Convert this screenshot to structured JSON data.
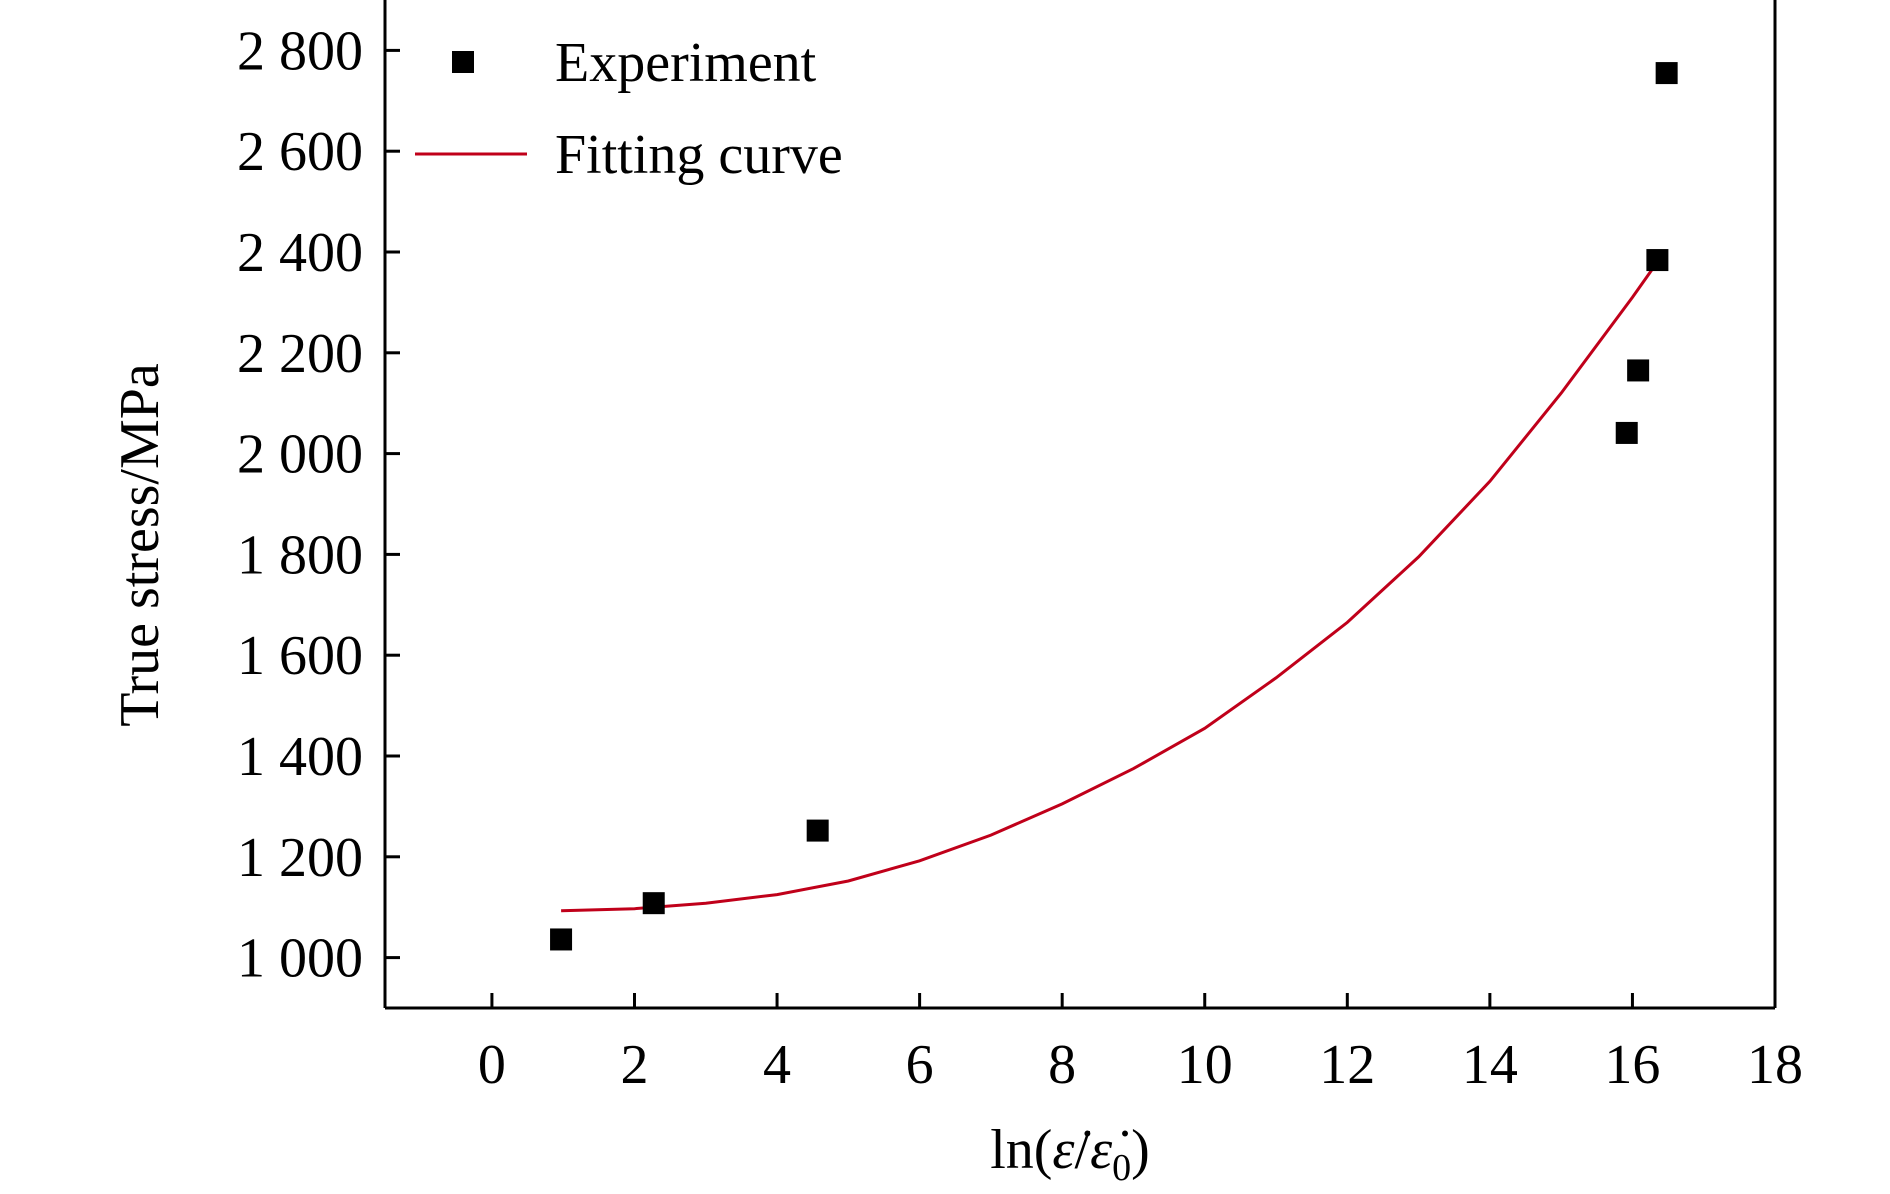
{
  "chart_data": {
    "type": "scatter",
    "title": "",
    "xlabel": "ln(ε̇/ε̇₀)",
    "xlabel_parts": {
      "prefix": "ln(",
      "numerator": "ε̇",
      "separator": "/",
      "denominator": "ε̇",
      "denominator_subscript": "0",
      "suffix": ")"
    },
    "ylabel": "True stress/MPa",
    "xlim": [
      -1.5,
      18
    ],
    "ylim": [
      900,
      2900
    ],
    "x_ticks": [
      0,
      2,
      4,
      6,
      8,
      10,
      12,
      14,
      16,
      18
    ],
    "x_tick_labels": [
      "0",
      "2",
      "4",
      "6",
      "8",
      "10",
      "12",
      "14",
      "16",
      "18"
    ],
    "y_ticks": [
      1000,
      1200,
      1400,
      1600,
      1800,
      2000,
      2200,
      2400,
      2600,
      2800
    ],
    "y_tick_labels": [
      "1 000",
      "1 200",
      "1 400",
      "1 600",
      "1 800",
      "2 000",
      "2 200",
      "2 400",
      "2 600",
      "2 800"
    ],
    "grid": false,
    "legend_position": "top-left",
    "series": [
      {
        "name": "Experiment",
        "kind": "scatter",
        "marker": "square",
        "color": "#000000",
        "points": [
          {
            "x": 0.97,
            "y": 1036
          },
          {
            "x": 2.27,
            "y": 1108
          },
          {
            "x": 4.57,
            "y": 1252
          },
          {
            "x": 15.92,
            "y": 2041
          },
          {
            "x": 16.08,
            "y": 2165
          },
          {
            "x": 16.35,
            "y": 2384
          },
          {
            "x": 16.48,
            "y": 2755
          }
        ]
      },
      {
        "name": "Fitting curve",
        "kind": "line",
        "color": "#c0001a",
        "points": [
          {
            "x": 0.97,
            "y": 1093
          },
          {
            "x": 2.0,
            "y": 1097
          },
          {
            "x": 3.0,
            "y": 1108
          },
          {
            "x": 4.0,
            "y": 1125
          },
          {
            "x": 5.0,
            "y": 1152
          },
          {
            "x": 6.0,
            "y": 1192
          },
          {
            "x": 7.0,
            "y": 1243
          },
          {
            "x": 8.0,
            "y": 1305
          },
          {
            "x": 9.0,
            "y": 1375
          },
          {
            "x": 10.0,
            "y": 1455
          },
          {
            "x": 11.0,
            "y": 1555
          },
          {
            "x": 12.0,
            "y": 1665
          },
          {
            "x": 13.0,
            "y": 1795
          },
          {
            "x": 14.0,
            "y": 1945
          },
          {
            "x": 15.0,
            "y": 2120
          },
          {
            "x": 16.0,
            "y": 2310
          },
          {
            "x": 16.4,
            "y": 2390
          }
        ]
      }
    ]
  }
}
